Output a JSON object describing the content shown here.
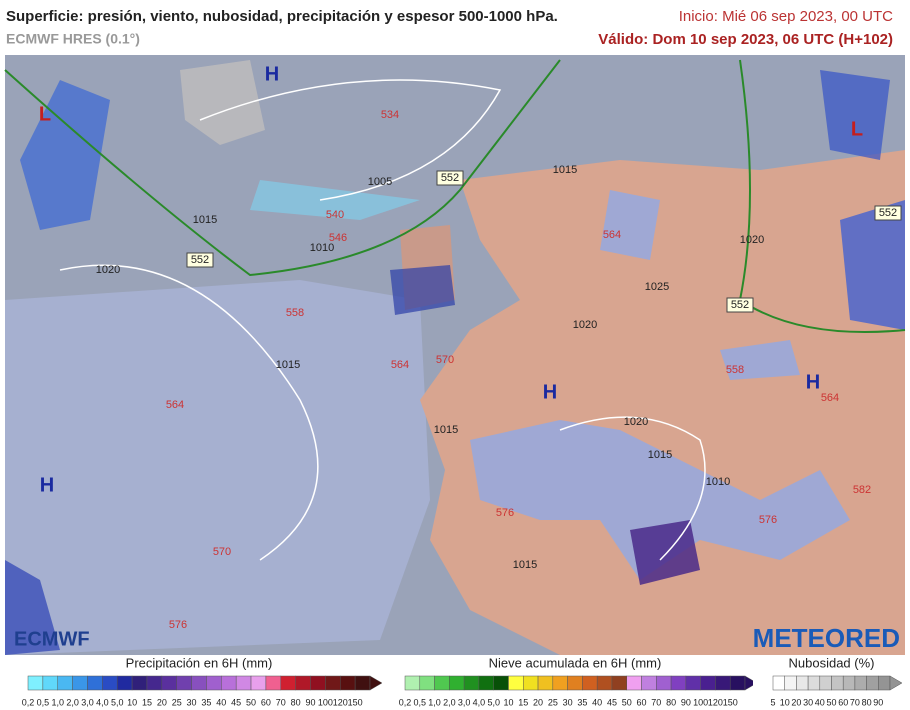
{
  "header": {
    "title": "Superficie: presión, viento, nubosidad, precipitación y espesor 500-1000 hPa.",
    "model": "ECMWF HRES (0.1°)",
    "init": "Inicio: Mié 06 sep 2023, 00 UTC",
    "valid": "Válido: Dom 10 sep 2023, 06 UTC (H+102)"
  },
  "map": {
    "pressure_centers": [
      "H",
      "L",
      "L",
      "H",
      "H",
      "H"
    ],
    "isobar_labels": [
      "1015",
      "1005",
      "1020",
      "1015",
      "1010",
      "1015",
      "1020",
      "1025",
      "1020",
      "1020",
      "1015",
      "1010",
      "1015",
      "1015"
    ],
    "thickness_labels": [
      "534",
      "540",
      "546",
      "552",
      "552",
      "552",
      "552",
      "558",
      "564",
      "570",
      "564",
      "558",
      "564",
      "576",
      "570",
      "576",
      "576",
      "582",
      "564"
    ]
  },
  "logos": {
    "left": "ECMWF",
    "right": "METEORED"
  },
  "legends": [
    {
      "title": "Precipitación en 6H (mm)",
      "labels": [
        "0,2",
        "0,5",
        "1,0",
        "2,0",
        "3,0",
        "4,0",
        "5,0",
        "10",
        "15",
        "20",
        "25",
        "30",
        "35",
        "40",
        "45",
        "50",
        "60",
        "70",
        "80",
        "90",
        "100",
        "120",
        "150"
      ]
    },
    {
      "title": "Nieve acumulada en 6H (mm)",
      "labels": [
        "0,2",
        "0,5",
        "1,0",
        "2,0",
        "3,0",
        "4,0",
        "5,0",
        "10",
        "15",
        "20",
        "25",
        "30",
        "35",
        "40",
        "45",
        "50",
        "60",
        "70",
        "80",
        "90",
        "100",
        "120",
        "150"
      ]
    },
    {
      "title": "Nubosidad (%)",
      "labels": [
        "5",
        "10",
        "20",
        "30",
        "40",
        "50",
        "60",
        "70",
        "80",
        "90"
      ]
    }
  ]
}
